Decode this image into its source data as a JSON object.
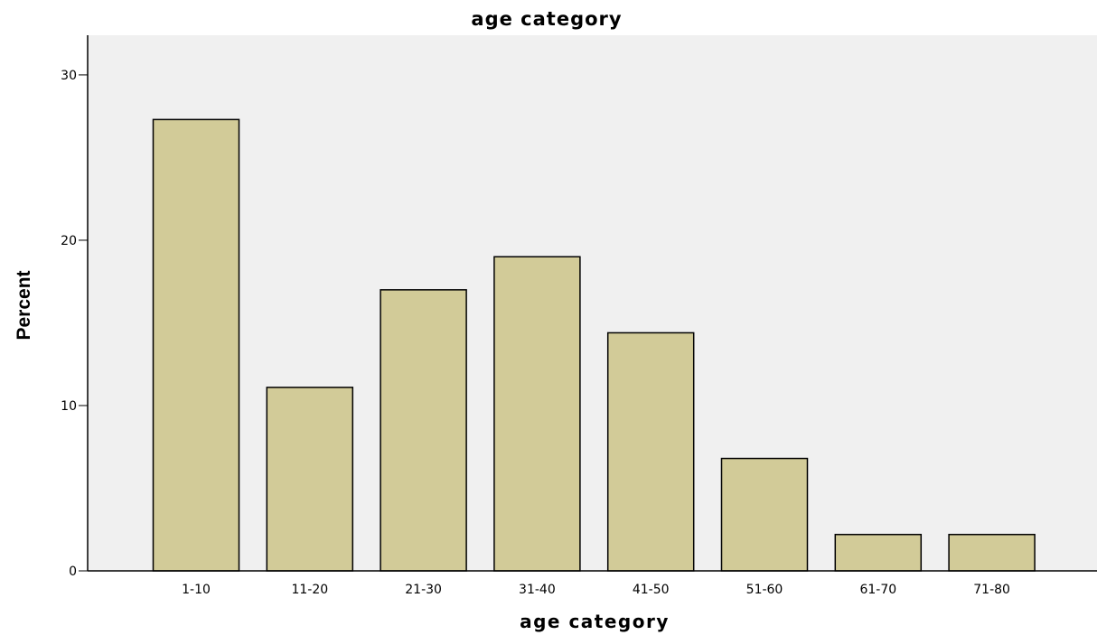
{
  "chart_data": {
    "type": "bar",
    "title": "age category",
    "xlabel": "age category",
    "ylabel": "Percent",
    "categories": [
      "1-10",
      "11-20",
      "21-30",
      "31-40",
      "41-50",
      "51-60",
      "61-70",
      "71-80"
    ],
    "values": [
      27.3,
      11.1,
      17.0,
      19.0,
      14.4,
      6.8,
      2.2,
      2.2
    ],
    "ylim": [
      0,
      32.4
    ],
    "yticks": [
      0,
      10,
      20,
      30
    ],
    "yticklabels": [
      "0",
      "10",
      "20",
      "30"
    ],
    "grid": false,
    "colors": {
      "bar": "#d2cb98",
      "plot_background": "#f0f0f0",
      "outline": "#000000"
    }
  }
}
